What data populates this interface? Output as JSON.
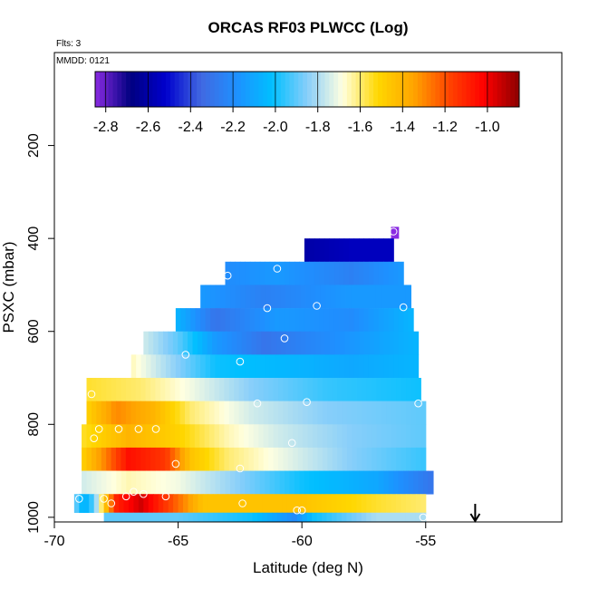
{
  "chart_data": {
    "type": "heatmap",
    "title": "ORCAS RF03 PLWCC (Log)",
    "flights_label": "Flts: 3",
    "date_label": "MMDD: 0121",
    "xlabel": "Latitude (deg N)",
    "ylabel": "PSXC (mbar)",
    "xlim": [
      -70,
      -49.5
    ],
    "ylim": [
      1010,
      0
    ],
    "x_ticks": [
      -70,
      -65,
      -60,
      -55
    ],
    "y_ticks": [
      200,
      400,
      600,
      800,
      1000
    ],
    "colorbar": {
      "range": [
        -2.85,
        -0.85
      ],
      "ticks": [
        -2.8,
        -2.6,
        -2.4,
        -2.2,
        -2.0,
        -1.8,
        -1.6,
        -1.4,
        -1.2,
        -1.0
      ],
      "tick_labels": [
        "-2.8",
        "-2.6",
        "-2.4",
        "-2.2",
        "-2.0",
        "-1.8",
        "-1.6",
        "-1.4",
        "-1.2",
        "-1.0"
      ],
      "colors": [
        "#8a2be2",
        "#000080",
        "#0000cd",
        "#4169e1",
        "#1e90ff",
        "#00bfff",
        "#87cefa",
        "#ffffe0",
        "#ffd700",
        "#ffa500",
        "#ff4500",
        "#ff0000",
        "#8b0000"
      ]
    },
    "layers": [
      {
        "p0": 375,
        "p1": 400,
        "x0": -56.4,
        "x1": -56.1,
        "stops": [
          [
            -56.4,
            -2.85
          ],
          [
            -56.1,
            -2.85
          ]
        ]
      },
      {
        "p0": 400,
        "p1": 450,
        "x0": -59.9,
        "x1": -56.3,
        "stops": [
          [
            -59.9,
            -2.6
          ],
          [
            -58.0,
            -2.55
          ],
          [
            -56.3,
            -2.55
          ]
        ]
      },
      {
        "p0": 450,
        "p1": 500,
        "x0": -63.1,
        "x1": -55.9,
        "stops": [
          [
            -63.1,
            -2.2
          ],
          [
            -61.0,
            -2.15
          ],
          [
            -58.0,
            -2.25
          ],
          [
            -55.9,
            -2.15
          ]
        ]
      },
      {
        "p0": 500,
        "p1": 550,
        "x0": -64.1,
        "x1": -55.6,
        "stops": [
          [
            -64.1,
            -2.15
          ],
          [
            -61.5,
            -2.25
          ],
          [
            -58.0,
            -2.15
          ],
          [
            -55.6,
            -2.15
          ]
        ]
      },
      {
        "p0": 550,
        "p1": 600,
        "x0": -65.1,
        "x1": -55.5,
        "stops": [
          [
            -65.1,
            -2.05
          ],
          [
            -63.5,
            -2.3
          ],
          [
            -61.0,
            -2.15
          ],
          [
            -58.0,
            -2.2
          ],
          [
            -55.5,
            -2.05
          ]
        ]
      },
      {
        "p0": 600,
        "p1": 650,
        "x0": -66.4,
        "x1": -55.3,
        "stops": [
          [
            -66.4,
            -1.75
          ],
          [
            -65.0,
            -1.9
          ],
          [
            -63.5,
            -2.15
          ],
          [
            -61.5,
            -2.3
          ],
          [
            -59.0,
            -2.2
          ],
          [
            -55.3,
            -2.05
          ]
        ]
      },
      {
        "p0": 650,
        "p1": 700,
        "x0": -66.9,
        "x1": -55.3,
        "stops": [
          [
            -66.9,
            -1.65
          ],
          [
            -65.5,
            -1.8
          ],
          [
            -63.5,
            -2.0
          ],
          [
            -60.5,
            -2.05
          ],
          [
            -58.0,
            -2.1
          ],
          [
            -55.3,
            -2.05
          ]
        ]
      },
      {
        "p0": 700,
        "p1": 750,
        "x0": -68.7,
        "x1": -55.2,
        "stops": [
          [
            -68.7,
            -1.55
          ],
          [
            -66.5,
            -1.6
          ],
          [
            -64.5,
            -1.7
          ],
          [
            -62.0,
            -1.85
          ],
          [
            -59.0,
            -1.95
          ],
          [
            -55.2,
            -2.0
          ]
        ]
      },
      {
        "p0": 750,
        "p1": 800,
        "x0": -68.7,
        "x1": -55.0,
        "stops": [
          [
            -68.7,
            -1.5
          ],
          [
            -67.5,
            -1.3
          ],
          [
            -66.0,
            -1.4
          ],
          [
            -64.5,
            -1.6
          ],
          [
            -62.0,
            -1.75
          ],
          [
            -59.0,
            -1.85
          ],
          [
            -55.0,
            -1.9
          ]
        ]
      },
      {
        "p0": 800,
        "p1": 850,
        "x0": -68.9,
        "x1": -55.0,
        "stops": [
          [
            -68.9,
            -1.55
          ],
          [
            -67.0,
            -1.4
          ],
          [
            -65.0,
            -1.5
          ],
          [
            -63.0,
            -1.65
          ],
          [
            -61.0,
            -1.75
          ],
          [
            -58.0,
            -1.85
          ],
          [
            -55.0,
            -1.9
          ]
        ]
      },
      {
        "p0": 850,
        "p1": 900,
        "x0": -68.9,
        "x1": -55.0,
        "stops": [
          [
            -68.9,
            -1.5
          ],
          [
            -68.0,
            -1.3
          ],
          [
            -67.0,
            -1.05
          ],
          [
            -65.5,
            -1.15
          ],
          [
            -64.5,
            -1.45
          ],
          [
            -63.0,
            -1.6
          ],
          [
            -61.0,
            -1.7
          ],
          [
            -58.0,
            -1.85
          ],
          [
            -55.0,
            -1.95
          ]
        ]
      },
      {
        "p0": 900,
        "p1": 950,
        "x0": -68.9,
        "x1": -54.7,
        "stops": [
          [
            -68.9,
            -1.75
          ],
          [
            -67.0,
            -1.65
          ],
          [
            -65.0,
            -1.7
          ],
          [
            -62.5,
            -1.85
          ],
          [
            -60.0,
            -2.0
          ],
          [
            -57.0,
            -2.1
          ],
          [
            -54.7,
            -2.3
          ]
        ]
      },
      {
        "p0": 950,
        "p1": 990,
        "x0": -69.2,
        "x1": -55.0,
        "stops": [
          [
            -69.2,
            -1.85
          ],
          [
            -68.8,
            -2.1
          ],
          [
            -68.4,
            -1.9
          ],
          [
            -68.0,
            -1.5
          ],
          [
            -67.5,
            -1.1
          ],
          [
            -66.5,
            -0.95
          ],
          [
            -65.5,
            -1.15
          ],
          [
            -64.0,
            -1.45
          ],
          [
            -62.0,
            -1.45
          ],
          [
            -60.0,
            -1.45
          ],
          [
            -57.0,
            -1.55
          ],
          [
            -55.0,
            -1.6
          ]
        ]
      },
      {
        "p0": 990,
        "p1": 1010,
        "x0": -68.0,
        "x1": -55.0,
        "stops": [
          [
            -68.0,
            -1.9
          ],
          [
            -65.0,
            -1.9
          ],
          [
            -62.0,
            -2.0
          ],
          [
            -60.3,
            -2.2
          ],
          [
            -59.5,
            -2.0
          ],
          [
            -57.0,
            -1.8
          ],
          [
            -55.0,
            -1.8
          ]
        ]
      }
    ],
    "markers": [
      {
        "x": -56.3,
        "y": 385
      },
      {
        "x": -61.0,
        "y": 465
      },
      {
        "x": -63.0,
        "y": 480
      },
      {
        "x": -61.4,
        "y": 550
      },
      {
        "x": -59.4,
        "y": 545
      },
      {
        "x": -55.9,
        "y": 548
      },
      {
        "x": -60.7,
        "y": 615
      },
      {
        "x": -64.7,
        "y": 650
      },
      {
        "x": -62.5,
        "y": 665
      },
      {
        "x": -68.5,
        "y": 735
      },
      {
        "x": -61.8,
        "y": 755
      },
      {
        "x": -59.8,
        "y": 752
      },
      {
        "x": -55.3,
        "y": 755
      },
      {
        "x": -68.2,
        "y": 810
      },
      {
        "x": -67.4,
        "y": 810
      },
      {
        "x": -66.6,
        "y": 810
      },
      {
        "x": -65.9,
        "y": 810
      },
      {
        "x": -68.4,
        "y": 830
      },
      {
        "x": -60.4,
        "y": 840
      },
      {
        "x": -65.1,
        "y": 885
      },
      {
        "x": -62.5,
        "y": 895
      },
      {
        "x": -54.7,
        "y": 885
      },
      {
        "x": -69.0,
        "y": 960
      },
      {
        "x": -68.0,
        "y": 960
      },
      {
        "x": -67.1,
        "y": 955
      },
      {
        "x": -66.4,
        "y": 950
      },
      {
        "x": -65.5,
        "y": 955
      },
      {
        "x": -67.7,
        "y": 970
      },
      {
        "x": -66.8,
        "y": 945
      },
      {
        "x": -62.4,
        "y": 970
      },
      {
        "x": -60.2,
        "y": 985
      },
      {
        "x": -60.0,
        "y": 985
      },
      {
        "x": -55.1,
        "y": 1000
      }
    ],
    "arrow": {
      "x": -53.0,
      "label": "down-arrow"
    }
  }
}
